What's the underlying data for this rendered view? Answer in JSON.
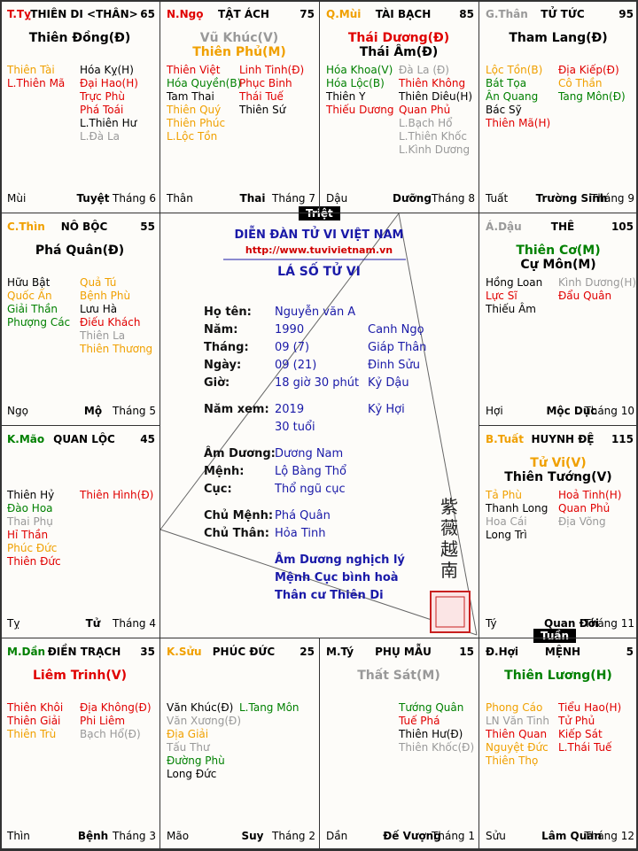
{
  "header": {
    "forum": "DIỄN ĐÀN TỬ VI VIỆT NAM",
    "url": "http://www.tuvivietnam.vn",
    "title": "LÁ SỐ TỬ VI",
    "seal": "紫薇越南",
    "triet": "Triệt",
    "tuan": "Tuần"
  },
  "info": [
    {
      "label": "Họ tên:",
      "value": "Nguyễn văn A",
      "extra": ""
    },
    {
      "label": "Năm:",
      "value": "1990",
      "extra": "Canh Ngọ"
    },
    {
      "label": "Tháng:",
      "value": "09 (7)",
      "extra": "Giáp Thân"
    },
    {
      "label": "Ngày:",
      "value": "09 (21)",
      "extra": "Đinh Sửu"
    },
    {
      "label": "Giờ:",
      "value": "18 giờ 30 phút",
      "extra": "Kỷ Dậu"
    },
    {
      "label": "Năm xem:",
      "value": "2019",
      "extra": "Kỷ Hợi"
    },
    {
      "label": "",
      "value": "30 tuổi",
      "extra": ""
    },
    {
      "label": "Âm Dương:",
      "value": "Dương Nam",
      "extra": ""
    },
    {
      "label": "Mệnh:",
      "value": "Lộ Bàng Thổ",
      "extra": ""
    },
    {
      "label": "Cục:",
      "value": "Thổ ngũ cục",
      "extra": ""
    },
    {
      "label": "Chủ Mệnh:",
      "value": "Phá Quân",
      "extra": ""
    },
    {
      "label": "Chủ Thân:",
      "value": "Hỏa Tinh",
      "extra": ""
    }
  ],
  "notes": [
    "Âm Dương nghịch lý",
    "Mệnh Cục bình hoà",
    "Thân cư Thiên Di"
  ],
  "palaces": [
    {
      "branch": {
        "text": "T.Tỵ",
        "color": "#e00000"
      },
      "name": "THIÊN DI <THÂN>",
      "age": "65",
      "main": [
        {
          "text": "Thiên Đồng(Đ)",
          "color": "#000000"
        }
      ],
      "left": [
        {
          "text": "Thiên Tài",
          "color": "#f0a000"
        },
        {
          "text": "L.Thiên Mã",
          "color": "#e00000"
        }
      ],
      "right": [
        {
          "text": "Hóa Kỵ(H)",
          "color": "#000000"
        },
        {
          "text": "Đại Hao(H)",
          "color": "#e00000"
        },
        {
          "text": "Trực Phù",
          "color": "#e00000"
        },
        {
          "text": "Phá Toái",
          "color": "#e00000"
        },
        {
          "text": "L.Thiên Hư",
          "color": "#000000"
        },
        {
          "text": "L.Đà La",
          "color": "#999999"
        }
      ],
      "footer": {
        "branch": "Mùi",
        "stage": "Tuyệt",
        "month": "Tháng 6"
      }
    },
    {
      "branch": {
        "text": "N.Ngọ",
        "color": "#e00000"
      },
      "name": "TẬT ÁCH",
      "age": "75",
      "main": [
        {
          "text": "Vũ Khúc(V)",
          "color": "#999999"
        },
        {
          "text": "Thiên Phủ(M)",
          "color": "#f0a000"
        }
      ],
      "left": [
        {
          "text": "Thiên Việt",
          "color": "#e00000"
        },
        {
          "text": "Hóa Quyền(B)",
          "color": "#008000"
        },
        {
          "text": "Tam Thai",
          "color": "#000000"
        },
        {
          "text": "Thiên Quý",
          "color": "#f0a000"
        },
        {
          "text": "Thiên Phúc",
          "color": "#f0a000"
        },
        {
          "text": "L.Lộc Tồn",
          "color": "#f0a000"
        }
      ],
      "right": [
        {
          "text": "Linh Tinh(Đ)",
          "color": "#e00000"
        },
        {
          "text": "Phục Binh",
          "color": "#e00000"
        },
        {
          "text": "Thái Tuế",
          "color": "#e00000"
        },
        {
          "text": "Thiên Sứ",
          "color": "#000000"
        }
      ],
      "footer": {
        "branch": "Thân",
        "stage": "Thai",
        "month": "Tháng 7"
      }
    },
    {
      "branch": {
        "text": "Q.Mùi",
        "color": "#f0a000"
      },
      "name": "TÀI BẠCH",
      "age": "85",
      "main": [
        {
          "text": "Thái Dương(Đ)",
          "color": "#e00000"
        },
        {
          "text": "Thái Âm(Đ)",
          "color": "#000000"
        }
      ],
      "left": [
        {
          "text": "Hóa Khoa(V)",
          "color": "#008000"
        },
        {
          "text": "Hóa Lộc(B)",
          "color": "#008000"
        },
        {
          "text": "Thiên Y",
          "color": "#000000"
        },
        {
          "text": "Thiếu Dương",
          "color": "#e00000"
        }
      ],
      "right": [
        {
          "text": "Đà La (Đ)",
          "color": "#999999"
        },
        {
          "text": "Thiên Không",
          "color": "#e00000"
        },
        {
          "text": "Thiên Diêu(H)",
          "color": "#000000"
        },
        {
          "text": "Quan Phủ",
          "color": "#e00000"
        },
        {
          "text": "L.Bạch Hổ",
          "color": "#999999"
        },
        {
          "text": "L.Thiên Khốc",
          "color": "#999999"
        },
        {
          "text": "L.Kình Dương",
          "color": "#999999"
        }
      ],
      "footer": {
        "branch": "Dậu",
        "stage": "Dưỡng",
        "month": "Tháng 8"
      }
    },
    {
      "branch": {
        "text": "G.Thân",
        "color": "#999999"
      },
      "name": "TỬ TỨC",
      "age": "95",
      "main": [
        {
          "text": "Tham Lang(Đ)",
          "color": "#000000"
        }
      ],
      "left": [
        {
          "text": "Lộc Tồn(B)",
          "color": "#f0a000"
        },
        {
          "text": "Bát Tọa",
          "color": "#008000"
        },
        {
          "text": "Ân Quang",
          "color": "#008000"
        },
        {
          "text": "Bác Sỹ",
          "color": "#000000"
        },
        {
          "text": "Thiên Mã(H)",
          "color": "#e00000"
        }
      ],
      "right": [
        {
          "text": "Địa Kiếp(Đ)",
          "color": "#e00000"
        },
        {
          "text": "Cô Thần",
          "color": "#f0a000"
        },
        {
          "text": "Tang Môn(Đ)",
          "color": "#008000"
        }
      ],
      "footer": {
        "branch": "Tuất",
        "stage": "Trường Sinh",
        "month": "Tháng 9"
      }
    },
    {
      "branch": {
        "text": "Á.Dậu",
        "color": "#999999"
      },
      "name": "THÊ",
      "age": "105",
      "main": [
        {
          "text": "Thiên Cơ(M)",
          "color": "#008000"
        },
        {
          "text": "Cự Môn(M)",
          "color": "#000000"
        }
      ],
      "left": [
        {
          "text": "Hồng Loan",
          "color": "#000000"
        },
        {
          "text": "Lực Sĩ",
          "color": "#e00000"
        },
        {
          "text": "Thiếu Âm",
          "color": "#000000"
        }
      ],
      "right": [
        {
          "text": "Kình Dương(H)",
          "color": "#999999"
        },
        {
          "text": "Đẩu Quân",
          "color": "#e00000"
        }
      ],
      "footer": {
        "branch": "Hợi",
        "stage": "Mộc Dục",
        "month": "Tháng 10"
      }
    },
    {
      "branch": {
        "text": "B.Tuất",
        "color": "#f0a000"
      },
      "name": "HUYNH ĐỆ",
      "age": "115",
      "main": [
        {
          "text": "Tử Vi(V)",
          "color": "#f0a000"
        },
        {
          "text": "Thiên Tướng(V)",
          "color": "#000000"
        }
      ],
      "left": [
        {
          "text": "Tả Phù",
          "color": "#f0a000"
        },
        {
          "text": "Thanh Long",
          "color": "#000000"
        },
        {
          "text": "Hoa Cái",
          "color": "#999999"
        },
        {
          "text": "Long Trì",
          "color": "#000000"
        }
      ],
      "right": [
        {
          "text": "Hoả Tinh(H)",
          "color": "#e00000"
        },
        {
          "text": "Quan Phủ",
          "color": "#e00000"
        },
        {
          "text": "Địa Võng",
          "color": "#999999"
        }
      ],
      "footer": {
        "branch": "Tý",
        "stage": "Quan Đới",
        "month": "Tháng 11"
      }
    },
    {
      "branch": {
        "text": "Đ.Hợi",
        "color": "#000000"
      },
      "name": "MỆNH",
      "age": "5",
      "main": [
        {
          "text": "Thiên Lương(H)",
          "color": "#008000"
        }
      ],
      "left": [
        {
          "text": "Phong Cáo",
          "color": "#f0a000"
        },
        {
          "text": "LN Văn Tinh",
          "color": "#999999"
        },
        {
          "text": "Thiên Quan",
          "color": "#e00000"
        },
        {
          "text": "Nguyệt Đức",
          "color": "#f0a000"
        },
        {
          "text": "Thiên Thọ",
          "color": "#f0a000"
        }
      ],
      "right": [
        {
          "text": "Tiểu Hao(H)",
          "color": "#e00000"
        },
        {
          "text": "Tử Phủ",
          "color": "#e00000"
        },
        {
          "text": "Kiếp Sát",
          "color": "#e00000"
        },
        {
          "text": "L.Thái Tuế",
          "color": "#e00000"
        }
      ],
      "footer": {
        "branch": "Sửu",
        "stage": "Lâm Quan",
        "month": "Tháng 12"
      }
    },
    {
      "branch": {
        "text": "M.Tý",
        "color": "#000000"
      },
      "name": "PHỤ MẪU",
      "age": "15",
      "main": [
        {
          "text": "Thất Sát(M)",
          "color": "#999999"
        }
      ],
      "left": [],
      "right": [
        {
          "text": "Tướng Quân",
          "color": "#008000"
        },
        {
          "text": "Tuế Phá",
          "color": "#e00000"
        },
        {
          "text": "Thiên Hư(Đ)",
          "color": "#000000"
        },
        {
          "text": "Thiên Khốc(Đ)",
          "color": "#999999"
        }
      ],
      "footer": {
        "branch": "Dần",
        "stage": "Đế Vượng",
        "month": "Tháng 1"
      }
    },
    {
      "branch": {
        "text": "K.Sửu",
        "color": "#f0a000"
      },
      "name": "PHÚC ĐỨC",
      "age": "25",
      "main": [],
      "left": [
        {
          "text": "Văn Khúc(Đ)",
          "color": "#000000"
        },
        {
          "text": "Văn Xương(Đ)",
          "color": "#999999"
        },
        {
          "text": "Địa Giải",
          "color": "#f0a000"
        },
        {
          "text": "Tấu Thư",
          "color": "#999999"
        },
        {
          "text": "Đường Phù",
          "color": "#008000"
        },
        {
          "text": "Long Đức",
          "color": "#000000"
        }
      ],
      "right": [
        {
          "text": "L.Tang Môn",
          "color": "#008000"
        }
      ],
      "footer": {
        "branch": "Mão",
        "stage": "Suy",
        "month": "Tháng 2"
      }
    },
    {
      "branch": {
        "text": "M.Dần",
        "color": "#008000"
      },
      "name": "ĐIỀN TRẠCH",
      "age": "35",
      "main": [
        {
          "text": "Liêm Trinh(V)",
          "color": "#e00000"
        }
      ],
      "left": [
        {
          "text": "Thiên Khôi",
          "color": "#e00000"
        },
        {
          "text": "Thiên Giải",
          "color": "#e00000"
        },
        {
          "text": "Thiên Trù",
          "color": "#f0a000"
        }
      ],
      "right": [
        {
          "text": "Địa Không(Đ)",
          "color": "#e00000"
        },
        {
          "text": "Phi Liêm",
          "color": "#e00000"
        },
        {
          "text": "Bạch Hổ(Đ)",
          "color": "#999999"
        }
      ],
      "footer": {
        "branch": "Thìn",
        "stage": "Bệnh",
        "month": "Tháng 3"
      }
    },
    {
      "branch": {
        "text": "K.Mão",
        "color": "#008000"
      },
      "name": "QUAN LỘC",
      "age": "45",
      "main": [],
      "left": [
        {
          "text": "Thiên Hỷ",
          "color": "#000000"
        },
        {
          "text": "Đào Hoa",
          "color": "#008000"
        },
        {
          "text": "Thai Phụ",
          "color": "#999999"
        },
        {
          "text": "Hỉ Thần",
          "color": "#e00000"
        },
        {
          "text": "Phúc Đức",
          "color": "#f0a000"
        },
        {
          "text": "Thiên Đức",
          "color": "#e00000"
        }
      ],
      "right": [
        {
          "text": "Thiên Hình(Đ)",
          "color": "#e00000"
        }
      ],
      "footer": {
        "branch": "Tỵ",
        "stage": "Tử",
        "month": "Tháng 4"
      }
    },
    {
      "branch": {
        "text": "C.Thìn",
        "color": "#f0a000"
      },
      "name": "NÔ BỘC",
      "age": "55",
      "main": [
        {
          "text": "Phá Quân(Đ)",
          "color": "#000000"
        }
      ],
      "left": [
        {
          "text": "Hữu Bật",
          "color": "#000000"
        },
        {
          "text": "Quốc Ấn",
          "color": "#f0a000"
        },
        {
          "text": "Giải Thần",
          "color": "#008000"
        },
        {
          "text": "Phượng Các",
          "color": "#008000"
        }
      ],
      "right": [
        {
          "text": "Quả Tú",
          "color": "#f0a000"
        },
        {
          "text": "Bệnh Phù",
          "color": "#f0a000"
        },
        {
          "text": "Lưu Hà",
          "color": "#000000"
        },
        {
          "text": "Điếu Khách",
          "color": "#e00000"
        },
        {
          "text": "Thiên La",
          "color": "#999999"
        },
        {
          "text": "Thiên Thương",
          "color": "#f0a000"
        }
      ],
      "footer": {
        "branch": "Ngọ",
        "stage": "Mộ",
        "month": "Tháng 5"
      }
    }
  ]
}
